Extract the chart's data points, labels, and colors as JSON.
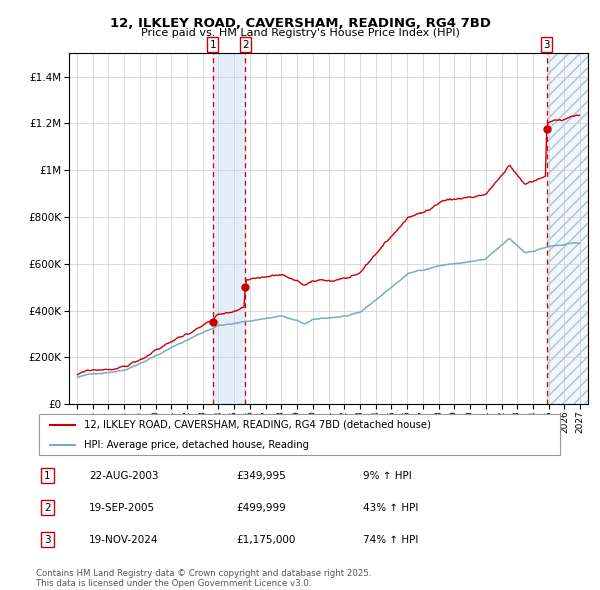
{
  "title1": "12, ILKLEY ROAD, CAVERSHAM, READING, RG4 7BD",
  "title2": "Price paid vs. HM Land Registry's House Price Index (HPI)",
  "red_label": "12, ILKLEY ROAD, CAVERSHAM, READING, RG4 7BD (detached house)",
  "blue_label": "HPI: Average price, detached house, Reading",
  "sale1_date": "22-AUG-2003",
  "sale1_price": 349995,
  "sale1_price_str": "£349,995",
  "sale1_hpi": "9% ↑ HPI",
  "sale2_date": "19-SEP-2005",
  "sale2_price": 499999,
  "sale2_price_str": "£499,999",
  "sale2_hpi": "43% ↑ HPI",
  "sale3_date": "19-NOV-2024",
  "sale3_price": 1175000,
  "sale3_price_str": "£1,175,000",
  "sale3_hpi": "74% ↑ HPI",
  "footnote1": "Contains HM Land Registry data © Crown copyright and database right 2025.",
  "footnote2": "This data is licensed under the Open Government Licence v3.0.",
  "red_color": "#cc0000",
  "blue_color": "#7aaac8",
  "sale1_x": 2003.645,
  "sale2_x": 2005.72,
  "sale3_x": 2024.885,
  "ylim_min": 0,
  "ylim_max": 1500000,
  "xlim_min": 1994.5,
  "xlim_max": 2027.5,
  "xtick_start": 1995,
  "xtick_end": 2027
}
